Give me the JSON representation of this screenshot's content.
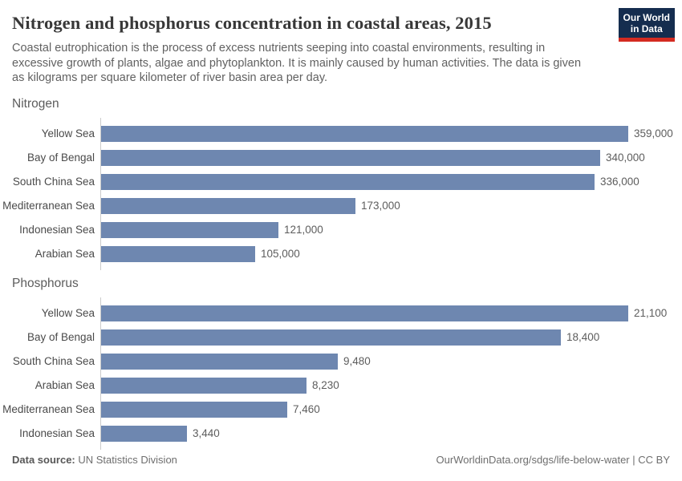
{
  "header": {
    "title": "Nitrogen and phosphorus concentration in coastal areas, 2015",
    "subtitle_lines": [
      "Coastal eutrophication is the process of excess nutrients seeping into coastal environments, resulting in",
      "excessive growth of plants, algae and phytoplankton. It is mainly caused by human activities. The data is given",
      "as kilograms per square kilometer of river basin area per day."
    ],
    "logo": {
      "line1": "Our World",
      "line2": "in Data"
    }
  },
  "chart_data": [
    {
      "type": "bar",
      "title": "Nitrogen",
      "orientation": "horizontal",
      "categories": [
        "Yellow Sea",
        "Bay of Bengal",
        "South China Sea",
        "Mediterranean Sea",
        "Indonesian Sea",
        "Arabian Sea"
      ],
      "values": [
        359000,
        340000,
        336000,
        173000,
        121000,
        105000
      ],
      "value_labels": [
        "359,000",
        "340,000",
        "336,000",
        "173,000",
        "121,000",
        "105,000"
      ],
      "xlim": [
        0,
        359000
      ],
      "grid": false,
      "legend": "none"
    },
    {
      "type": "bar",
      "title": "Phosphorus",
      "orientation": "horizontal",
      "categories": [
        "Yellow Sea",
        "Bay of Bengal",
        "South China Sea",
        "Arabian Sea",
        "Mediterranean Sea",
        "Indonesian Sea"
      ],
      "values": [
        21100,
        18400,
        9480,
        8230,
        7460,
        3440
      ],
      "value_labels": [
        "21,100",
        "18,400",
        "9,480",
        "8,230",
        "7,460",
        "3,440"
      ],
      "xlim": [
        0,
        21100
      ],
      "grid": false,
      "legend": "none"
    }
  ],
  "footer": {
    "source_label": "Data source:",
    "source_value": "UN Statistics Division",
    "link": "OurWorldinData.org/sdgs/life-below-water",
    "separator": "|",
    "license": "CC BY"
  },
  "colors": {
    "bar": "#6e87b0",
    "logo_bg": "#152d4f",
    "logo_stripe": "#d42b21",
    "axis": "#cccccc"
  }
}
